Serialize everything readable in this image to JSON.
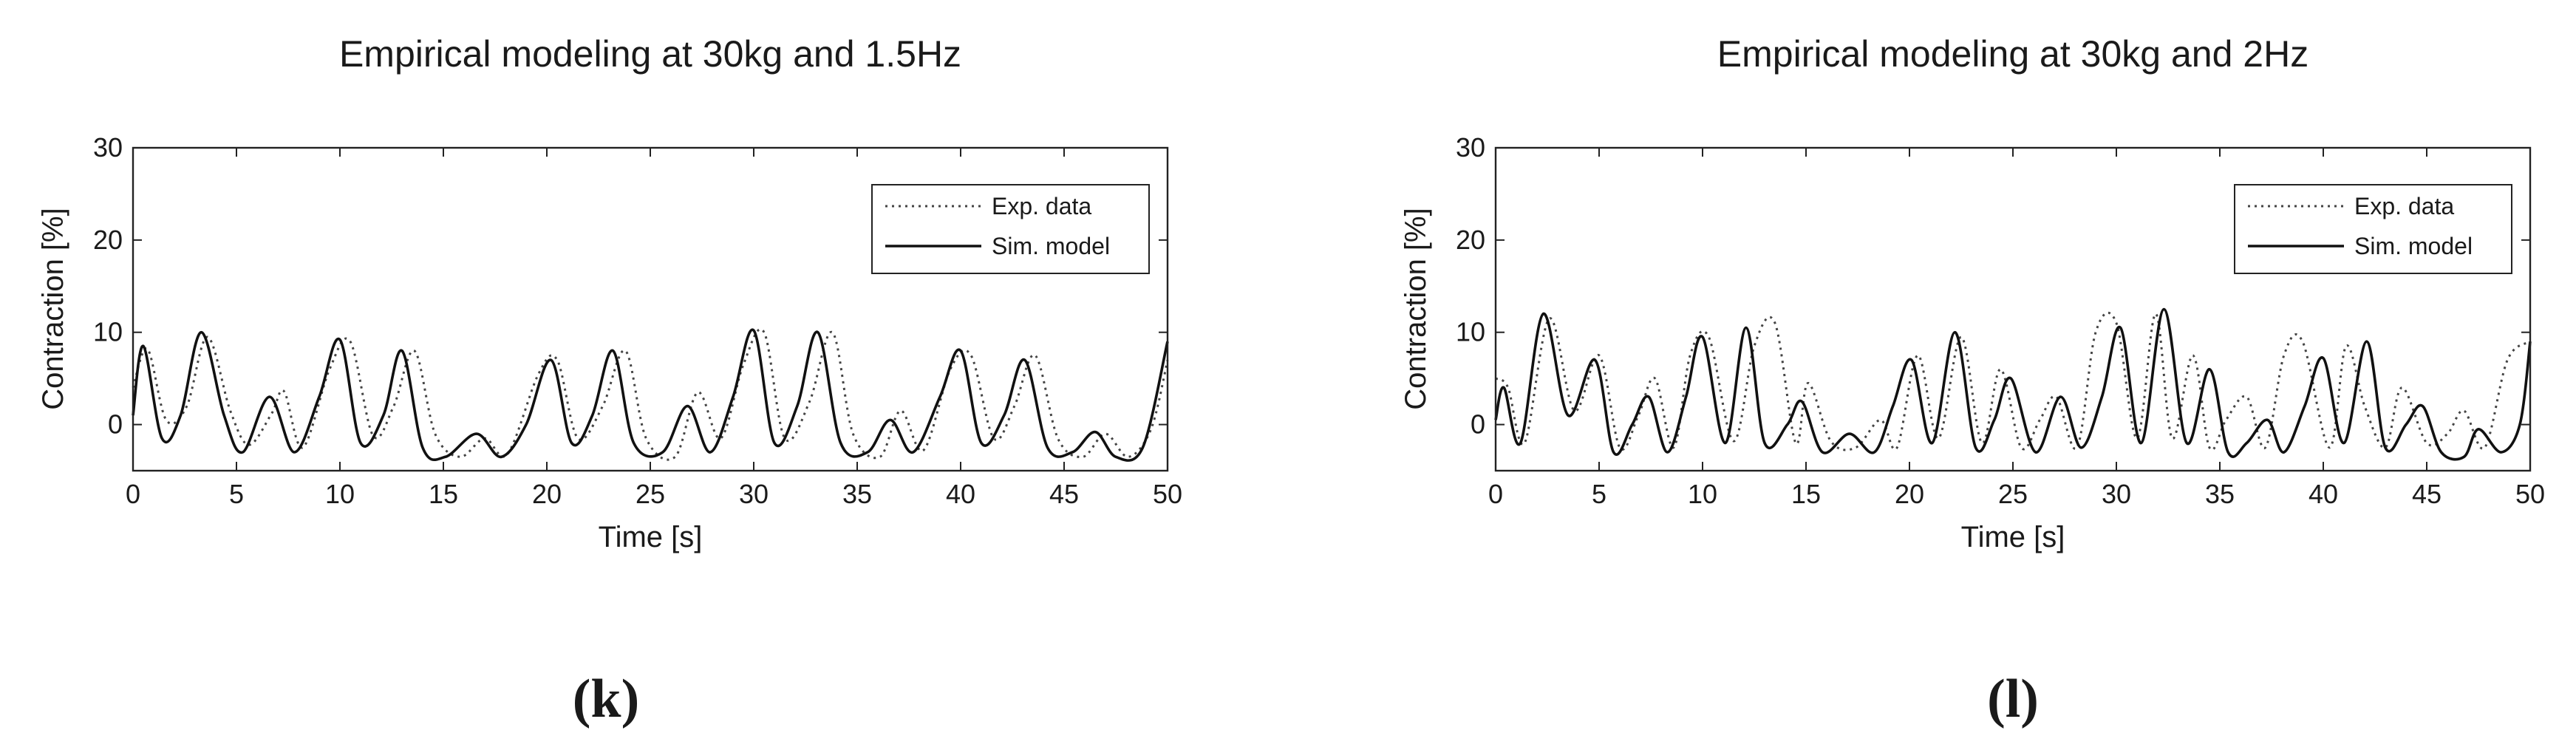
{
  "chart_data": [
    {
      "type": "line",
      "title": "Empirical modeling at 30kg and 1.5Hz",
      "xlabel": "Time [s]",
      "ylabel": "Contraction [%]",
      "xlim": [
        0,
        50
      ],
      "ylim": [
        -5,
        30
      ],
      "x_ticks": [
        0,
        5,
        10,
        15,
        20,
        25,
        30,
        35,
        40,
        45,
        50
      ],
      "y_ticks": [
        0,
        10,
        20,
        30
      ],
      "grid": false,
      "legend_position": "top-right",
      "caption": "(k)",
      "series": [
        {
          "name": "Exp. data",
          "style": "dotted",
          "color": "#444444",
          "x": [
            0,
            0.7,
            1.6,
            2.6,
            3.6,
            4.7,
            5.6,
            6.7,
            7.3,
            8.2,
            9.5,
            10.5,
            11.6,
            12.6,
            13.6,
            14.6,
            15.8,
            17.0,
            18.1,
            19.6,
            20.5,
            21.5,
            22.7,
            23.8,
            24.8,
            26.2,
            27.3,
            28.4,
            29.5,
            30.5,
            31.5,
            32.7,
            33.8,
            34.8,
            36.1,
            37.1,
            38.2,
            39.5,
            40.5,
            41.6,
            42.6,
            43.6,
            44.7,
            45.9,
            47.0,
            48.1,
            49.2,
            50
          ],
          "y": [
            4,
            8.2,
            0.5,
            2,
            9.5,
            1.5,
            -2.2,
            1.2,
            3.6,
            -2.5,
            6,
            9,
            -1.2,
            2,
            8,
            -1,
            -3.5,
            -1.5,
            -3.2,
            5.5,
            7,
            -1.5,
            2,
            8,
            -1.5,
            -3.5,
            3.5,
            -1.5,
            6.5,
            10,
            -1.5,
            2.5,
            10,
            -1,
            -3.5,
            1.5,
            -2.8,
            6,
            7.5,
            -1.5,
            2,
            7.5,
            -1.5,
            -3.5,
            -1,
            -3.5,
            -0.5,
            7
          ]
        },
        {
          "name": "Sim. model",
          "style": "solid",
          "color": "#111111",
          "x": [
            0,
            0.5,
            1.4,
            2.3,
            3.3,
            4.4,
            5.3,
            6.6,
            7.8,
            9.0,
            10.0,
            11.0,
            12.1,
            13.0,
            14.0,
            15.1,
            16.6,
            17.8,
            19.0,
            20.2,
            21.2,
            22.2,
            23.2,
            24.2,
            25.6,
            26.8,
            27.9,
            29.0,
            30.0,
            31.0,
            32.1,
            33.1,
            34.2,
            35.5,
            36.6,
            37.7,
            39.0,
            40.0,
            41.0,
            42.1,
            43.1,
            44.2,
            45.4,
            46.5,
            47.5,
            48.8,
            50
          ],
          "y": [
            1,
            8.5,
            -1.5,
            1,
            10,
            1,
            -3,
            3,
            -3,
            3,
            9.2,
            -2,
            1,
            8,
            -2.5,
            -3.5,
            -1,
            -3.5,
            0,
            7,
            -2,
            1,
            8,
            -2,
            -3,
            2,
            -3,
            3,
            10.2,
            -2,
            2,
            10,
            -2,
            -3,
            0.5,
            -3,
            3,
            8,
            -2,
            1,
            7,
            -2.5,
            -3,
            -0.8,
            -3.5,
            -2.5,
            9
          ]
        }
      ]
    },
    {
      "type": "line",
      "title": "Empirical modeling at 30kg and 2Hz",
      "xlabel": "Time [s]",
      "ylabel": "Contraction [%]",
      "xlim": [
        0,
        50
      ],
      "ylim": [
        -5,
        30
      ],
      "x_ticks": [
        0,
        5,
        10,
        15,
        20,
        25,
        30,
        35,
        40,
        45,
        50
      ],
      "y_ticks": [
        0,
        10,
        20,
        30
      ],
      "grid": false,
      "legend_position": "top-right",
      "caption": "(l)",
      "series": [
        {
          "name": "Exp. data",
          "style": "dotted",
          "color": "#444444",
          "x": [
            0,
            0.6,
            1.4,
            2.6,
            3.8,
            5.0,
            6.0,
            6.9,
            7.7,
            8.6,
            9.4,
            10.3,
            11.5,
            12.5,
            13.5,
            14.5,
            15.1,
            16.2,
            17.4,
            18.6,
            19.4,
            20.4,
            21.4,
            22.5,
            23.5,
            24.4,
            25.4,
            26.3,
            27.1,
            28.1,
            29.0,
            30.0,
            31.0,
            31.9,
            32.7,
            33.7,
            34.5,
            35.3,
            36.3,
            37.2,
            38.1,
            39.0,
            40.3,
            41.1,
            42.0,
            43.0,
            43.8,
            45.0,
            46.0,
            46.8,
            47.8,
            48.9,
            50
          ],
          "y": [
            5,
            4,
            -2,
            11.5,
            1.5,
            7.5,
            -2.5,
            1,
            5,
            -2.5,
            7.5,
            9.5,
            -1.8,
            8.5,
            11,
            -2,
            4.5,
            -1.8,
            -2.5,
            0.5,
            -2.5,
            7.5,
            -1.5,
            9.5,
            -2,
            6,
            -2.5,
            0.5,
            3,
            -2.5,
            10,
            11,
            -1.5,
            12,
            -1.5,
            7.5,
            -2.5,
            0.5,
            3,
            -2.5,
            7.5,
            9,
            -2.5,
            8.5,
            2,
            -2.5,
            4,
            -2,
            -1,
            1.5,
            -2.5,
            7,
            9
          ]
        },
        {
          "name": "Sim. model",
          "style": "solid",
          "color": "#111111",
          "x": [
            0,
            0.4,
            1.2,
            2.3,
            3.5,
            4.8,
            5.7,
            6.6,
            7.4,
            8.3,
            9.2,
            10.0,
            11.1,
            12.1,
            13.0,
            14.1,
            14.8,
            15.8,
            17.1,
            18.3,
            19.2,
            20.1,
            21.1,
            22.2,
            23.2,
            24.1,
            24.9,
            26.1,
            27.3,
            28.3,
            29.3,
            30.2,
            31.2,
            32.3,
            33.4,
            34.5,
            35.4,
            36.3,
            37.3,
            38.1,
            39.1,
            40.0,
            41.0,
            42.1,
            43.0,
            44.0,
            44.8,
            45.7,
            46.8,
            47.5,
            48.6,
            49.5,
            50
          ],
          "y": [
            0.5,
            4,
            -2,
            12,
            1,
            7,
            -3,
            0,
            3,
            -3,
            3,
            9.5,
            -2,
            10.5,
            -2,
            0,
            2.5,
            -3,
            -1,
            -3,
            2,
            7,
            -2,
            10,
            -2.5,
            0.5,
            5,
            -3,
            3,
            -2.5,
            3,
            10.5,
            -2,
            12.5,
            -2,
            6,
            -3,
            -2,
            0.5,
            -3,
            2,
            7.2,
            -2,
            9,
            -2.5,
            0,
            2,
            -3,
            -3.5,
            -0.5,
            -3,
            0,
            9
          ]
        }
      ]
    }
  ]
}
